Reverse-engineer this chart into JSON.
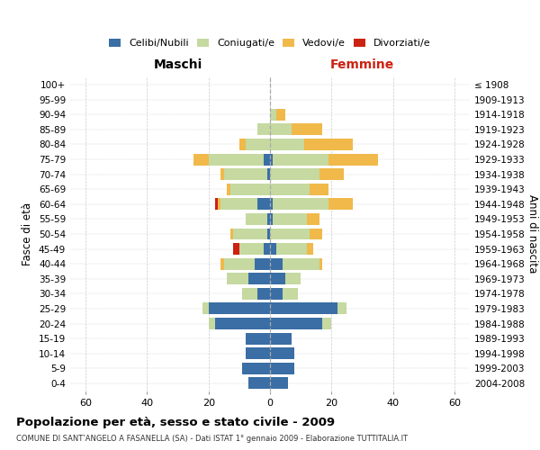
{
  "age_groups": [
    "0-4",
    "5-9",
    "10-14",
    "15-19",
    "20-24",
    "25-29",
    "30-34",
    "35-39",
    "40-44",
    "45-49",
    "50-54",
    "55-59",
    "60-64",
    "65-69",
    "70-74",
    "75-79",
    "80-84",
    "85-89",
    "90-94",
    "95-99",
    "100+"
  ],
  "birth_years": [
    "2004-2008",
    "1999-2003",
    "1994-1998",
    "1989-1993",
    "1984-1988",
    "1979-1983",
    "1974-1978",
    "1969-1973",
    "1964-1968",
    "1959-1963",
    "1954-1958",
    "1949-1953",
    "1944-1948",
    "1939-1943",
    "1934-1938",
    "1929-1933",
    "1924-1928",
    "1919-1923",
    "1914-1918",
    "1909-1913",
    "≤ 1908"
  ],
  "colors": {
    "celibi": "#3a6ea5",
    "coniugati": "#c5d9a0",
    "vedovi": "#f0b94a",
    "divorziati": "#cc2211"
  },
  "male": {
    "celibi": [
      7,
      9,
      8,
      8,
      18,
      20,
      4,
      7,
      5,
      2,
      1,
      1,
      4,
      0,
      1,
      2,
      0,
      0,
      0,
      0,
      0
    ],
    "coniugati": [
      0,
      0,
      0,
      0,
      2,
      2,
      5,
      7,
      10,
      8,
      11,
      7,
      12,
      13,
      14,
      18,
      8,
      4,
      0,
      0,
      0
    ],
    "vedovi": [
      0,
      0,
      0,
      0,
      0,
      0,
      0,
      0,
      1,
      0,
      1,
      0,
      1,
      1,
      1,
      5,
      2,
      0,
      0,
      0,
      0
    ],
    "divorziati": [
      0,
      0,
      0,
      0,
      0,
      0,
      0,
      0,
      0,
      2,
      0,
      0,
      1,
      0,
      0,
      0,
      0,
      0,
      0,
      0,
      0
    ]
  },
  "female": {
    "nubili": [
      6,
      8,
      8,
      7,
      17,
      22,
      4,
      5,
      4,
      2,
      0,
      1,
      1,
      0,
      0,
      1,
      0,
      0,
      0,
      0,
      0
    ],
    "coniugate": [
      0,
      0,
      0,
      0,
      3,
      3,
      5,
      5,
      12,
      10,
      13,
      11,
      18,
      13,
      16,
      18,
      11,
      7,
      2,
      0,
      0
    ],
    "vedove": [
      0,
      0,
      0,
      0,
      0,
      0,
      0,
      0,
      1,
      2,
      4,
      4,
      8,
      6,
      8,
      16,
      16,
      10,
      3,
      0,
      0
    ],
    "divorziate": [
      0,
      0,
      0,
      0,
      0,
      0,
      0,
      0,
      0,
      0,
      0,
      0,
      0,
      0,
      0,
      0,
      0,
      0,
      0,
      0,
      0
    ]
  },
  "xlim": 65,
  "title": "Popolazione per età, sesso e stato civile - 2009",
  "subtitle": "COMUNE DI SANT’ANGELO A FASANELLA (SA) - Dati ISTAT 1° gennaio 2009 - Elaborazione TUTTITALIA.IT",
  "maschi_label": "Maschi",
  "femmine_label": "Femmine",
  "ylabel_left": "Fasce di età",
  "ylabel_right": "Anni di nascita",
  "legend_labels": [
    "Celibi/Nubili",
    "Coniugati/e",
    "Vedovi/e",
    "Divorziati/e"
  ]
}
